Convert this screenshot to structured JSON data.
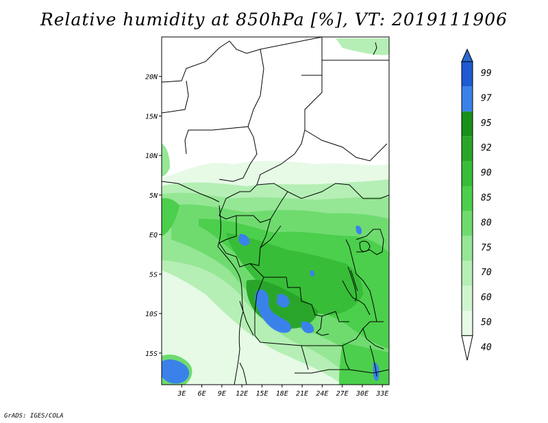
{
  "title": "Relative humidity at 850hPa [%], VT: 2019111906",
  "credit": "GrADS: IGES/COLA",
  "map": {
    "lon_range": [
      0,
      34
    ],
    "lat_range": [
      -19,
      25
    ],
    "lon_ticks": [
      "3E",
      "6E",
      "9E",
      "12E",
      "15E",
      "18E",
      "21E",
      "24E",
      "27E",
      "30E",
      "33E"
    ],
    "lon_tick_values": [
      3,
      6,
      9,
      12,
      15,
      18,
      21,
      24,
      27,
      30,
      33
    ],
    "lat_ticks": [
      "20N",
      "15N",
      "10N",
      "5N",
      "EQ",
      "5S",
      "10S",
      "15S"
    ],
    "lat_tick_values": [
      20,
      15,
      10,
      5,
      0,
      -5,
      -10,
      -15
    ]
  },
  "colorbar": {
    "levels": [
      "99",
      "97",
      "95",
      "92",
      "90",
      "85",
      "80",
      "75",
      "70",
      "60",
      "50",
      "40"
    ],
    "colors": [
      "#1e5ad2",
      "#3a82ea",
      "#1b8f1b",
      "#29a629",
      "#38bd38",
      "#4ccf4c",
      "#6fdb6f",
      "#95e695",
      "#b5efb5",
      "#cff5cf",
      "#e6fae6",
      "#ffffff"
    ],
    "top_color": "#2a6ad0",
    "bottom_color": "#ffffff"
  }
}
